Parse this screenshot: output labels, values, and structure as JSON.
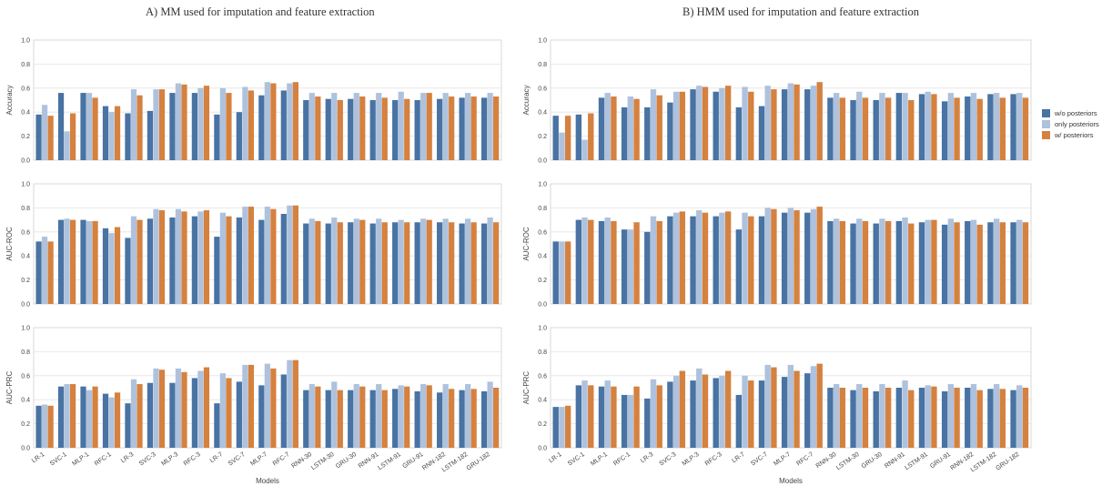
{
  "panels": [
    {
      "title": "A)  MM used for imputation and feature extraction"
    },
    {
      "title": "B) HMM used for imputation and feature extraction"
    }
  ],
  "legend": [
    {
      "label": "w/o posteriors",
      "color": "#4873a3"
    },
    {
      "label": "only posteriors",
      "color": "#aec2dd"
    },
    {
      "label": "w/ posteriors",
      "color": "#d5813f"
    }
  ],
  "chart_data": [
    {
      "type": "bar",
      "panel": "A",
      "metric": "Accuracy",
      "xlabel": "Models",
      "ylabel": "Accuracy",
      "ylim": [
        0,
        1.0
      ],
      "yticks": [
        "0.0",
        "0.2",
        "0.4",
        "0.6",
        "0.8",
        "1.0"
      ],
      "categories": [
        "LR-1",
        "SVC-1",
        "MLP-1",
        "RFC-1",
        "LR-3",
        "SVC-3",
        "MLP-3",
        "RFC-3",
        "LR-7",
        "SVC-7",
        "MLP-7",
        "RFC-7",
        "RNN-30",
        "LSTM-30",
        "GRU-30",
        "RNN-91",
        "LSTM-91",
        "GRU-91",
        "RNN-182",
        "LSTM-182",
        "GRU-182"
      ],
      "series": [
        {
          "name": "w/o posteriors",
          "values": [
            0.38,
            0.56,
            0.56,
            0.45,
            0.39,
            0.41,
            0.56,
            0.56,
            0.38,
            0.4,
            0.54,
            0.58,
            0.5,
            0.51,
            0.51,
            0.5,
            0.5,
            0.5,
            0.51,
            0.52,
            0.52
          ]
        },
        {
          "name": "only posteriors",
          "values": [
            0.46,
            0.24,
            0.56,
            0.4,
            0.59,
            0.59,
            0.64,
            0.6,
            0.6,
            0.61,
            0.65,
            0.64,
            0.56,
            0.56,
            0.56,
            0.56,
            0.57,
            0.56,
            0.56,
            0.56,
            0.56
          ]
        },
        {
          "name": "w/ posteriors",
          "values": [
            0.37,
            0.39,
            0.52,
            0.45,
            0.54,
            0.59,
            0.63,
            0.62,
            0.56,
            0.58,
            0.64,
            0.65,
            0.53,
            0.5,
            0.53,
            0.52,
            0.51,
            0.56,
            0.53,
            0.53,
            0.53
          ]
        }
      ]
    },
    {
      "type": "bar",
      "panel": "A",
      "metric": "AUC-ROC",
      "xlabel": "Models",
      "ylabel": "AUC-ROC",
      "ylim": [
        0,
        1.0
      ],
      "yticks": [
        "0.0",
        "0.2",
        "0.4",
        "0.6",
        "0.8",
        "1.0"
      ],
      "categories": [
        "LR-1",
        "SVC-1",
        "MLP-1",
        "RFC-1",
        "LR-3",
        "SVC-3",
        "MLP-3",
        "RFC-3",
        "LR-7",
        "SVC-7",
        "MLP-7",
        "RFC-7",
        "RNN-30",
        "LSTM-30",
        "GRU-30",
        "RNN-91",
        "LSTM-91",
        "GRU-91",
        "RNN-182",
        "LSTM-182",
        "GRU-182"
      ],
      "series": [
        {
          "name": "w/o posteriors",
          "values": [
            0.52,
            0.7,
            0.7,
            0.63,
            0.55,
            0.71,
            0.72,
            0.73,
            0.56,
            0.72,
            0.7,
            0.75,
            0.67,
            0.67,
            0.68,
            0.67,
            0.68,
            0.68,
            0.68,
            0.67,
            0.67
          ]
        },
        {
          "name": "only posteriors",
          "values": [
            0.56,
            0.71,
            0.69,
            0.59,
            0.73,
            0.79,
            0.79,
            0.77,
            0.76,
            0.81,
            0.81,
            0.82,
            0.71,
            0.72,
            0.71,
            0.71,
            0.7,
            0.71,
            0.71,
            0.71,
            0.72
          ]
        },
        {
          "name": "w/ posteriors",
          "values": [
            0.52,
            0.7,
            0.69,
            0.64,
            0.7,
            0.78,
            0.77,
            0.78,
            0.73,
            0.81,
            0.79,
            0.82,
            0.69,
            0.68,
            0.7,
            0.68,
            0.68,
            0.7,
            0.68,
            0.68,
            0.68
          ]
        }
      ]
    },
    {
      "type": "bar",
      "panel": "A",
      "metric": "AUC-PRC",
      "xlabel": "Models",
      "ylabel": "AUC-PRC",
      "ylim": [
        0,
        1.0
      ],
      "yticks": [
        "0.0",
        "0.2",
        "0.4",
        "0.6",
        "0.8",
        "1.0"
      ],
      "categories": [
        "LR-1",
        "SVC-1",
        "MLP-1",
        "RFC-1",
        "LR-3",
        "SVC-3",
        "MLP-3",
        "RFC-3",
        "LR-7",
        "SVC-7",
        "MLP-7",
        "RFC-7",
        "RNN-30",
        "LSTM-30",
        "GRU-30",
        "RNN-91",
        "LSTM-91",
        "GRU-91",
        "RNN-182",
        "LSTM-182",
        "GRU-182"
      ],
      "series": [
        {
          "name": "w/o posteriors",
          "values": [
            0.35,
            0.51,
            0.51,
            0.45,
            0.37,
            0.54,
            0.54,
            0.58,
            0.37,
            0.55,
            0.52,
            0.61,
            0.48,
            0.48,
            0.48,
            0.48,
            0.49,
            0.47,
            0.46,
            0.48,
            0.47
          ]
        },
        {
          "name": "only posteriors",
          "values": [
            0.36,
            0.53,
            0.48,
            0.42,
            0.57,
            0.66,
            0.66,
            0.64,
            0.62,
            0.69,
            0.7,
            0.73,
            0.53,
            0.55,
            0.53,
            0.53,
            0.52,
            0.53,
            0.53,
            0.53,
            0.55
          ]
        },
        {
          "name": "w/ posteriors",
          "values": [
            0.35,
            0.53,
            0.51,
            0.46,
            0.53,
            0.65,
            0.63,
            0.67,
            0.58,
            0.69,
            0.66,
            0.73,
            0.51,
            0.48,
            0.51,
            0.48,
            0.51,
            0.52,
            0.49,
            0.49,
            0.5
          ]
        }
      ]
    },
    {
      "type": "bar",
      "panel": "B",
      "metric": "Accuracy",
      "xlabel": "Models",
      "ylabel": "Accuracy",
      "ylim": [
        0,
        1.0
      ],
      "yticks": [
        "0.0",
        "0.2",
        "0.4",
        "0.6",
        "0.8",
        "1.0"
      ],
      "categories": [
        "LR-1",
        "SVC-1",
        "MLP-1",
        "RFC-1",
        "LR-3",
        "SVC-3",
        "MLP-3",
        "RFC-3",
        "LR-7",
        "SVC-7",
        "MLP-7",
        "RFC-7",
        "RNN-30",
        "LSTM-30",
        "GRU-30",
        "RNN-91",
        "LSTM-91",
        "GRU-91",
        "RNN-182",
        "LSTM-182",
        "GRU-182"
      ],
      "series": [
        {
          "name": "w/o posteriors",
          "values": [
            0.37,
            0.38,
            0.52,
            0.44,
            0.44,
            0.48,
            0.59,
            0.57,
            0.44,
            0.45,
            0.59,
            0.59,
            0.52,
            0.5,
            0.5,
            0.56,
            0.55,
            0.49,
            0.53,
            0.55,
            0.55
          ]
        },
        {
          "name": "only posteriors",
          "values": [
            0.23,
            0.17,
            0.56,
            0.53,
            0.59,
            0.57,
            0.62,
            0.6,
            0.61,
            0.62,
            0.64,
            0.62,
            0.56,
            0.57,
            0.56,
            0.56,
            0.57,
            0.56,
            0.56,
            0.56,
            0.56
          ]
        },
        {
          "name": "w/ posteriors",
          "values": [
            0.37,
            0.39,
            0.53,
            0.51,
            0.54,
            0.57,
            0.61,
            0.62,
            0.57,
            0.59,
            0.63,
            0.65,
            0.52,
            0.52,
            0.52,
            0.5,
            0.55,
            0.52,
            0.51,
            0.52,
            0.52
          ]
        }
      ]
    },
    {
      "type": "bar",
      "panel": "B",
      "metric": "AUC-ROC",
      "xlabel": "Models",
      "ylabel": "AUC-ROC",
      "ylim": [
        0,
        1.0
      ],
      "yticks": [
        "0.0",
        "0.2",
        "0.4",
        "0.6",
        "0.8",
        "1.0"
      ],
      "categories": [
        "LR-1",
        "SVC-1",
        "MLP-1",
        "RFC-1",
        "LR-3",
        "SVC-3",
        "MLP-3",
        "RFC-3",
        "LR-7",
        "SVC-7",
        "MLP-7",
        "RFC-7",
        "RNN-30",
        "LSTM-30",
        "GRU-30",
        "RNN-91",
        "LSTM-91",
        "GRU-91",
        "RNN-182",
        "LSTM-182",
        "GRU-182"
      ],
      "series": [
        {
          "name": "w/o posteriors",
          "values": [
            0.52,
            0.7,
            0.69,
            0.62,
            0.6,
            0.73,
            0.73,
            0.73,
            0.62,
            0.73,
            0.76,
            0.76,
            0.69,
            0.67,
            0.67,
            0.69,
            0.68,
            0.66,
            0.69,
            0.68,
            0.68
          ]
        },
        {
          "name": "only posteriors",
          "values": [
            0.52,
            0.72,
            0.72,
            0.62,
            0.73,
            0.76,
            0.78,
            0.76,
            0.76,
            0.8,
            0.8,
            0.79,
            0.71,
            0.71,
            0.71,
            0.72,
            0.7,
            0.71,
            0.7,
            0.71,
            0.7
          ]
        },
        {
          "name": "w/ posteriors",
          "values": [
            0.52,
            0.7,
            0.69,
            0.68,
            0.69,
            0.77,
            0.76,
            0.77,
            0.73,
            0.79,
            0.78,
            0.81,
            0.69,
            0.69,
            0.69,
            0.67,
            0.7,
            0.68,
            0.66,
            0.68,
            0.68
          ]
        }
      ]
    },
    {
      "type": "bar",
      "panel": "B",
      "metric": "AUC-PRC",
      "xlabel": "Models",
      "ylabel": "AUC-PRC",
      "ylim": [
        0,
        1.0
      ],
      "yticks": [
        "0.0",
        "0.2",
        "0.4",
        "0.6",
        "0.8",
        "1.0"
      ],
      "categories": [
        "LR-1",
        "SVC-1",
        "MLP-1",
        "RFC-1",
        "LR-3",
        "SVC-3",
        "MLP-3",
        "RFC-3",
        "LR-7",
        "SVC-7",
        "MLP-7",
        "RFC-7",
        "RNN-30",
        "LSTM-30",
        "GRU-30",
        "RNN-91",
        "LSTM-91",
        "GRU-91",
        "RNN-182",
        "LSTM-182",
        "GRU-182"
      ],
      "series": [
        {
          "name": "w/o posteriors",
          "values": [
            0.34,
            0.52,
            0.51,
            0.44,
            0.41,
            0.55,
            0.56,
            0.58,
            0.44,
            0.56,
            0.59,
            0.62,
            0.5,
            0.48,
            0.47,
            0.5,
            0.5,
            0.47,
            0.5,
            0.49,
            0.48
          ]
        },
        {
          "name": "only posteriors",
          "values": [
            0.34,
            0.56,
            0.56,
            0.44,
            0.57,
            0.6,
            0.66,
            0.6,
            0.6,
            0.69,
            0.69,
            0.68,
            0.53,
            0.53,
            0.53,
            0.56,
            0.52,
            0.53,
            0.53,
            0.53,
            0.52
          ]
        },
        {
          "name": "w/ posteriors",
          "values": [
            0.35,
            0.52,
            0.51,
            0.51,
            0.52,
            0.64,
            0.61,
            0.64,
            0.56,
            0.67,
            0.64,
            0.7,
            0.5,
            0.5,
            0.5,
            0.48,
            0.51,
            0.5,
            0.48,
            0.49,
            0.5
          ]
        }
      ]
    }
  ]
}
